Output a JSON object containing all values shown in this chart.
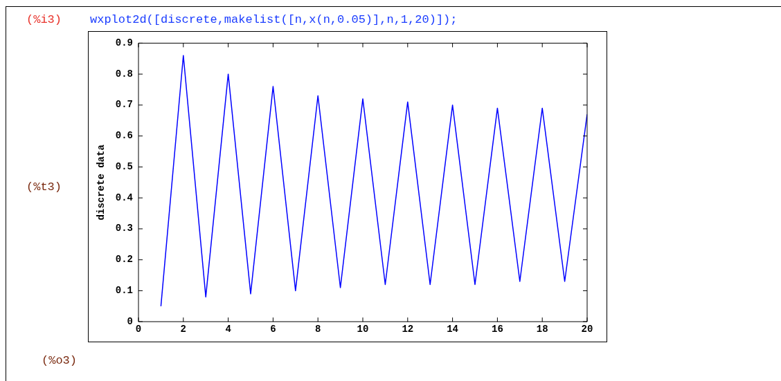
{
  "chart_data": {
    "type": "line",
    "title": "wxplot2d([discrete,makelist([n,x(n,0.05)],n,1,20)]);",
    "ylabel": "discrete data",
    "annotations": [
      "(%i3)",
      "(%t3)",
      "(%o3)"
    ],
    "x": [
      1,
      2,
      3,
      4,
      5,
      6,
      7,
      8,
      9,
      10,
      11,
      12,
      13,
      14,
      15,
      16,
      17,
      18,
      19,
      20
    ],
    "series": [
      {
        "color": "#0000ff",
        "values": [
          0.05,
          0.86,
          0.08,
          0.8,
          0.09,
          0.76,
          0.1,
          0.73,
          0.11,
          0.72,
          0.12,
          0.71,
          0.12,
          0.7,
          0.12,
          0.69,
          0.13,
          0.69,
          0.13,
          0.67
        ]
      }
    ],
    "xlim": [
      0,
      20
    ],
    "xticks": [
      0,
      2,
      4,
      6,
      8,
      10,
      12,
      14,
      16,
      18,
      20
    ],
    "ylim": [
      0,
      0.9
    ],
    "yticks": [
      0,
      0.1,
      0.2,
      0.3,
      0.4,
      0.5,
      0.6,
      0.7,
      0.8,
      0.9
    ],
    "grid": false,
    "legend": false,
    "marker": "none",
    "line_style": "solid"
  }
}
